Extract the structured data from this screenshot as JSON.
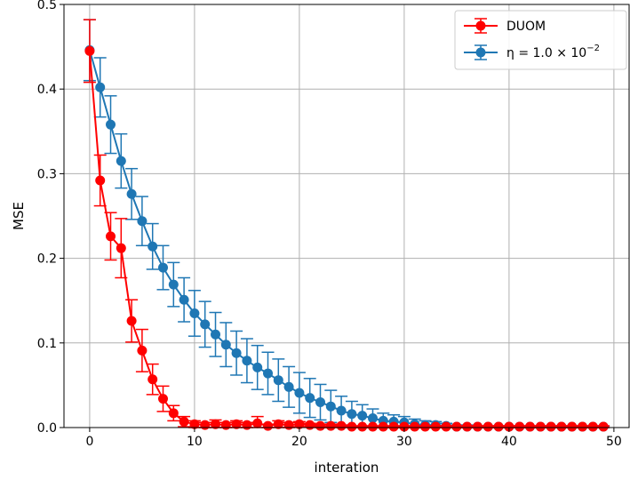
{
  "chart_data": {
    "type": "line",
    "xlabel": "interation",
    "ylabel": "MSE",
    "xlim": [
      -2.45,
      51.45
    ],
    "ylim": [
      0.0,
      0.5
    ],
    "xticks": [
      0,
      10,
      20,
      30,
      40,
      50
    ],
    "xtick_labels": [
      "0",
      "10",
      "20",
      "30",
      "40",
      "50"
    ],
    "yticks": [
      0.0,
      0.1,
      0.2,
      0.3,
      0.4,
      0.5
    ],
    "ytick_labels": [
      "0.0",
      "0.1",
      "0.2",
      "0.3",
      "0.4",
      "0.5"
    ],
    "grid": true,
    "legend_position": "top-right",
    "series": [
      {
        "name": "DUOM",
        "legend_label": "DUOM",
        "color": "#ff0000",
        "x": [
          0,
          1,
          2,
          3,
          4,
          5,
          6,
          7,
          8,
          9,
          10,
          11,
          12,
          13,
          14,
          15,
          16,
          17,
          18,
          19,
          20,
          21,
          22,
          23,
          24,
          25,
          26,
          27,
          28,
          29,
          30,
          31,
          32,
          33,
          34,
          35,
          36,
          37,
          38,
          39,
          40,
          41,
          42,
          43,
          44,
          45,
          46,
          47,
          48,
          49
        ],
        "y": [
          0.445,
          0.292,
          0.226,
          0.212,
          0.126,
          0.091,
          0.057,
          0.034,
          0.017,
          0.007,
          0.004,
          0.003,
          0.004,
          0.003,
          0.004,
          0.003,
          0.005,
          0.002,
          0.004,
          0.003,
          0.004,
          0.003,
          0.002,
          0.002,
          0.002,
          0.001,
          0.001,
          0.001,
          0.001,
          0.001,
          0.001,
          0.001,
          0.001,
          0.001,
          0.001,
          0.001,
          0.001,
          0.001,
          0.001,
          0.001,
          0.001,
          0.001,
          0.001,
          0.001,
          0.001,
          0.001,
          0.001,
          0.001,
          0.001,
          0.001
        ],
        "error": [
          0.037,
          0.03,
          0.028,
          0.035,
          0.025,
          0.025,
          0.018,
          0.015,
          0.009,
          0.006,
          0.004,
          0.003,
          0.005,
          0.003,
          0.004,
          0.003,
          0.008,
          0.002,
          0.004,
          0.003,
          0.003,
          0.002,
          0.002,
          0.002,
          0.001,
          0.001,
          0.001,
          0.001,
          0.001,
          0.001,
          0.001,
          0.001,
          0.001,
          0.001,
          0.001,
          0.001,
          0.001,
          0.001,
          0.001,
          0.001,
          0.001,
          0.001,
          0.001,
          0.001,
          0.001,
          0.001,
          0.001,
          0.001,
          0.001,
          0.001
        ]
      },
      {
        "name": "eta = 1.0 x 10^-2",
        "legend_label": "η = 1.0 × 10",
        "legend_exponent": "−2",
        "color": "#1f77b4",
        "x": [
          0,
          1,
          2,
          3,
          4,
          5,
          6,
          7,
          8,
          9,
          10,
          11,
          12,
          13,
          14,
          15,
          16,
          17,
          18,
          19,
          20,
          21,
          22,
          23,
          24,
          25,
          26,
          27,
          28,
          29,
          30,
          31,
          32,
          33,
          34,
          35,
          36,
          37,
          38,
          39,
          40,
          41,
          42,
          43,
          44,
          45,
          46,
          47,
          48,
          49
        ],
        "y": [
          0.446,
          0.402,
          0.358,
          0.315,
          0.276,
          0.244,
          0.214,
          0.189,
          0.169,
          0.151,
          0.135,
          0.122,
          0.11,
          0.098,
          0.088,
          0.079,
          0.071,
          0.064,
          0.056,
          0.048,
          0.041,
          0.035,
          0.03,
          0.025,
          0.02,
          0.016,
          0.014,
          0.011,
          0.008,
          0.007,
          0.006,
          0.004,
          0.003,
          0.003,
          0.002,
          0.001,
          0.001,
          0.001,
          0.001,
          0.001,
          0.001,
          0.001,
          0.001,
          0.001,
          0.001,
          0.001,
          0.001,
          0.001,
          0.001,
          0.001
        ],
        "error": [
          0.036,
          0.035,
          0.034,
          0.032,
          0.03,
          0.029,
          0.027,
          0.026,
          0.026,
          0.026,
          0.027,
          0.027,
          0.026,
          0.026,
          0.026,
          0.026,
          0.026,
          0.025,
          0.025,
          0.024,
          0.024,
          0.023,
          0.021,
          0.019,
          0.017,
          0.015,
          0.013,
          0.011,
          0.009,
          0.008,
          0.007,
          0.006,
          0.005,
          0.004,
          0.003,
          0.002,
          0.002,
          0.001,
          0.001,
          0.001,
          0.001,
          0.001,
          0.001,
          0.001,
          0.001,
          0.001,
          0.001,
          0.001,
          0.001,
          0.001
        ]
      }
    ]
  }
}
